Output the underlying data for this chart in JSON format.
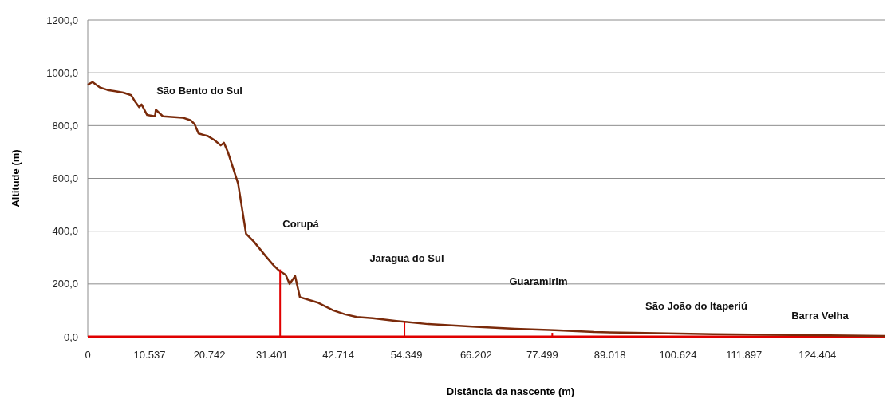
{
  "chart_data": {
    "type": "line",
    "xlabel": "Distância da nascente (m)",
    "ylabel": "Altitude (m)",
    "xlim": [
      0,
      136000
    ],
    "ylim": [
      0,
      1200
    ],
    "xticks": [
      {
        "value": 0,
        "label": "0"
      },
      {
        "value": 10537,
        "label": "10.537"
      },
      {
        "value": 20742,
        "label": "20.742"
      },
      {
        "value": 31401,
        "label": "31.401"
      },
      {
        "value": 42714,
        "label": "42.714"
      },
      {
        "value": 54349,
        "label": "54.349"
      },
      {
        "value": 66202,
        "label": "66.202"
      },
      {
        "value": 77499,
        "label": "77.499"
      },
      {
        "value": 89018,
        "label": "89.018"
      },
      {
        "value": 100624,
        "label": "100.624"
      },
      {
        "value": 111897,
        "label": "111.897"
      },
      {
        "value": 124404,
        "label": "124.404"
      }
    ],
    "yticks": [
      {
        "value": 0,
        "label": "0,0"
      },
      {
        "value": 200,
        "label": "200,0"
      },
      {
        "value": 400,
        "label": "400,0"
      },
      {
        "value": 600,
        "label": "600,0"
      },
      {
        "value": 800,
        "label": "800,0"
      },
      {
        "value": 1000,
        "label": "1000,0"
      },
      {
        "value": 1200,
        "label": "1200,0"
      }
    ],
    "grid": "y",
    "series": [
      {
        "color": "#7a2a0a",
        "x": [
          0,
          810,
          2020,
          3370,
          4720,
          6070,
          7420,
          8100,
          8770,
          9180,
          10120,
          11470,
          11610,
          12820,
          16190,
          17540,
          18220,
          18890,
          20510,
          21590,
          22670,
          23210,
          23890,
          25640,
          26990,
          28340,
          30360,
          31710,
          32660,
          33740,
          34410,
          35360,
          36170,
          39140,
          41840,
          43860,
          45880,
          48580,
          52630,
          58030,
          66130,
          72870,
          79620,
          86370,
          93120,
          106610,
          120110,
          135900
        ],
        "values": [
          955,
          965,
          945,
          935,
          930,
          925,
          915,
          890,
          870,
          880,
          840,
          835,
          860,
          835,
          830,
          820,
          805,
          770,
          760,
          745,
          725,
          735,
          700,
          580,
          390,
          360,
          305,
          270,
          250,
          235,
          200,
          230,
          150,
          130,
          100,
          85,
          75,
          70,
          60,
          48,
          38,
          30,
          25,
          18,
          15,
          10,
          7,
          3
        ]
      },
      {
        "type": "bar",
        "color": "#e00000",
        "x": [
          32800,
          54000,
          79200
        ],
        "values": [
          255,
          55,
          15
        ]
      }
    ],
    "annotations": [
      "São Bento do Sul",
      "Corupá",
      "Jaraguá do Sul",
      "Guaramirim",
      "São João do Itaperiú",
      "Barra Velha"
    ]
  }
}
